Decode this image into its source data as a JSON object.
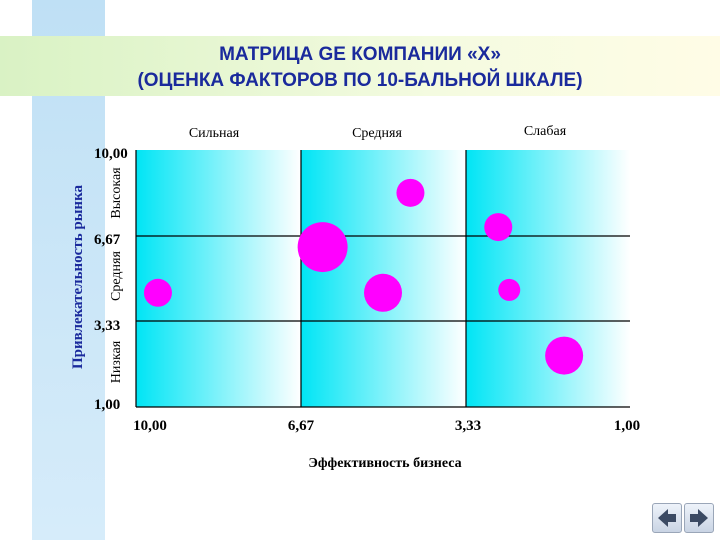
{
  "slide": {
    "title_line1": "МАТРИЦА GE КОМПАНИИ «Х»",
    "title_line2": "(ОЦЕНКА ФАКТОРОВ ПО 10-БАЛЬНОЙ ШКАЛЕ)"
  },
  "chart_data": {
    "type": "scatter",
    "title": "",
    "xlabel": "Эффективность бизнеса",
    "ylabel": "Привлекательность рынка",
    "x_tick_labels": [
      "10,00",
      "6,67",
      "3,33",
      "1,00"
    ],
    "y_tick_labels": [
      "10,00",
      "6,67",
      "3,33",
      "1,00"
    ],
    "x_categories": [
      "Сильная",
      "Средняя",
      "Слабая"
    ],
    "y_categories": [
      "Высокая",
      "Средняя",
      "Низкая"
    ],
    "xlim": [
      10,
      1
    ],
    "ylim": [
      1,
      10
    ],
    "grid": false,
    "colors": {
      "bubble": "#ff00ff",
      "band": "#00e5f5",
      "axis": "#000000"
    },
    "points": [
      {
        "x": 9.6,
        "y": 5.0,
        "size": "small"
      },
      {
        "x": 5.0,
        "y": 8.5,
        "size": "small"
      },
      {
        "x": 6.6,
        "y": 6.6,
        "size": "large"
      },
      {
        "x": 5.5,
        "y": 5.0,
        "size": "medium"
      },
      {
        "x": 3.4,
        "y": 7.3,
        "size": "small"
      },
      {
        "x": 3.2,
        "y": 5.1,
        "size": "xsmall"
      },
      {
        "x": 2.2,
        "y": 2.8,
        "size": "medium"
      }
    ]
  },
  "nav": {
    "prev_icon": "left-arrow-icon",
    "next_icon": "right-arrow-icon"
  }
}
